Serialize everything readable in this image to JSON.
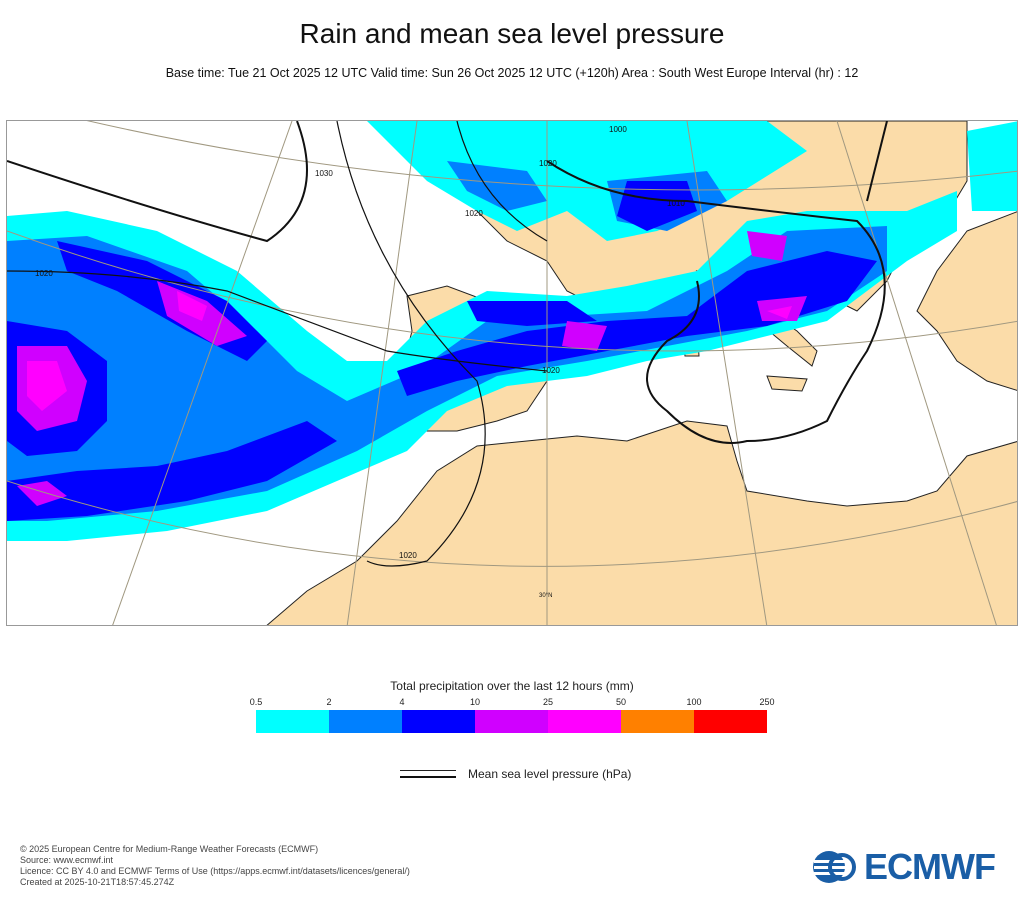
{
  "title": "Rain and mean sea level pressure",
  "subtitle": "Base time: Tue 21 Oct 2025 12 UTC Valid time: Sun 26 Oct 2025 12 UTC (+120h) Area : South West Europe Interval (hr) : 12",
  "map": {
    "isobar_labels": [
      "1030",
      "1020",
      "1020",
      "1020",
      "1020",
      "1010",
      "1000",
      "1020"
    ],
    "lat_label": "30°N",
    "land_color": "#fbdca9"
  },
  "colorbar": {
    "title": "Total precipitation over the last 12 hours (mm)",
    "ticks": [
      "0.5",
      "2",
      "4",
      "10",
      "25",
      "50",
      "100",
      "250"
    ],
    "colors": [
      "#00ffff",
      "#0080ff",
      "#0000ff",
      "#d000ff",
      "#ff00ff",
      "#ff8000",
      "#ff0000"
    ]
  },
  "legend": {
    "pressure_label": "Mean sea level pressure (hPa)"
  },
  "footer": {
    "lines": [
      "© 2025 European Centre for Medium-Range Weather Forecasts (ECMWF)",
      "Source: www.ecmwf.int",
      "Licence: CC BY 4.0 and ECMWF Terms of Use (https://apps.ecmwf.int/datasets/licences/general/)",
      "Created at 2025-10-21T18:57:45.274Z"
    ],
    "logo_text": "ECMWF"
  }
}
